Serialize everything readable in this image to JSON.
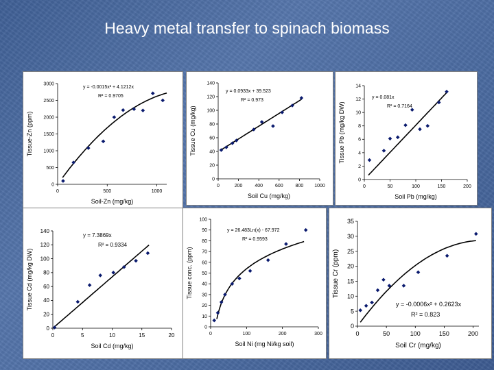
{
  "slide": {
    "title": "Heavy metal transfer to spinach biomass"
  },
  "colors": {
    "marker": "#0a1a6e",
    "line": "#000000",
    "background": "#ffffff"
  },
  "chart_data": [
    {
      "id": "zn",
      "type": "scatter",
      "xlabel": "Soil-Zn (mg/kg)",
      "ylabel": "Tissue-Zn (ppm)",
      "xlim": [
        0,
        1100
      ],
      "ylim": [
        0,
        3000
      ],
      "xticks": [
        0,
        500,
        1000
      ],
      "yticks": [
        0,
        500,
        1000,
        1500,
        2000,
        2500,
        3000
      ],
      "points": [
        [
          55,
          100
        ],
        [
          160,
          650
        ],
        [
          310,
          1080
        ],
        [
          460,
          1280
        ],
        [
          570,
          2000
        ],
        [
          660,
          2210
        ],
        [
          770,
          2240
        ],
        [
          860,
          2200
        ],
        [
          960,
          2710
        ],
        [
          1060,
          2500
        ]
      ],
      "trend": {
        "kind": "poly2",
        "a": -0.0015,
        "b": 4.1212,
        "range": [
          50,
          1100
        ]
      },
      "equation": "y = -0.0015x² + 4.1212x",
      "r2": "R² = 0.9705"
    },
    {
      "id": "cu",
      "type": "scatter",
      "xlabel": "Soil Cu (mg/kg)",
      "ylabel": "Tissue Cu (mg/kg)",
      "xlim": [
        0,
        1000
      ],
      "ylim": [
        0,
        140
      ],
      "xticks": [
        0,
        200,
        400,
        600,
        800,
        1000
      ],
      "yticks": [
        0,
        20,
        40,
        60,
        80,
        100,
        120,
        140
      ],
      "points": [
        [
          30,
          42
        ],
        [
          80,
          46
        ],
        [
          140,
          52
        ],
        [
          180,
          56
        ],
        [
          350,
          72
        ],
        [
          430,
          83
        ],
        [
          540,
          77
        ],
        [
          630,
          97
        ],
        [
          730,
          107
        ],
        [
          820,
          118
        ]
      ],
      "trend": {
        "kind": "linear",
        "m": 0.0933,
        "c": 39.523,
        "range": [
          30,
          820
        ]
      },
      "equation": "y = 0.0933x + 39.523",
      "r2": "R² = 0.973"
    },
    {
      "id": "pb",
      "type": "scatter",
      "xlabel": "Soil Pb (mg/kg)",
      "ylabel": "Tissue Pb (mg/kg DW)",
      "xlim": [
        0,
        200
      ],
      "ylim": [
        0,
        14
      ],
      "xticks": [
        0,
        50,
        100,
        150,
        200
      ],
      "yticks": [
        0,
        2,
        4,
        6,
        8,
        10,
        12,
        14
      ],
      "points": [
        [
          10,
          2.9
        ],
        [
          38,
          4.3
        ],
        [
          50,
          6.1
        ],
        [
          65,
          6.3
        ],
        [
          80,
          8.1
        ],
        [
          93,
          10.4
        ],
        [
          108,
          7.5
        ],
        [
          123,
          8.0
        ],
        [
          145,
          11.5
        ],
        [
          160,
          13.1
        ]
      ],
      "trend": {
        "kind": "linear",
        "m": 0.081,
        "c": 0,
        "range": [
          8,
          162
        ]
      },
      "equation": "y = 0.081x",
      "r2": "R² = 0.7164"
    },
    {
      "id": "cd",
      "type": "scatter",
      "xlabel": "Soil Cd (mg/kg)",
      "ylabel": "Tissue Cd (mg/kg DW)",
      "xlim": [
        0,
        20
      ],
      "ylim": [
        0,
        140
      ],
      "xticks": [
        0,
        5,
        10,
        15,
        20
      ],
      "yticks": [
        0,
        20,
        40,
        60,
        80,
        100,
        120,
        140
      ],
      "points": [
        [
          0.3,
          1
        ],
        [
          4.2,
          38
        ],
        [
          6.2,
          62
        ],
        [
          8,
          76
        ],
        [
          10.2,
          80
        ],
        [
          12,
          88
        ],
        [
          14,
          97
        ],
        [
          16,
          108
        ]
      ],
      "trend": {
        "kind": "linear",
        "m": 7.3869,
        "c": 0,
        "range": [
          0,
          16.2
        ]
      },
      "equation": "y = 7.3869x",
      "r2": "R² = 0.9334"
    },
    {
      "id": "ni",
      "type": "scatter",
      "xlabel": "Soil Ni (mg Ni/kg soil)",
      "ylabel": "Tissue conc. (ppm)",
      "xlim": [
        0,
        300
      ],
      "ylim": [
        0,
        100
      ],
      "xticks": [
        0,
        100,
        200,
        300
      ],
      "yticks": [
        0,
        10,
        20,
        30,
        40,
        50,
        60,
        70,
        80,
        90,
        100
      ],
      "points": [
        [
          10,
          6
        ],
        [
          20,
          13
        ],
        [
          30,
          23
        ],
        [
          40,
          30
        ],
        [
          60,
          40
        ],
        [
          80,
          45
        ],
        [
          110,
          52
        ],
        [
          160,
          62
        ],
        [
          210,
          77
        ],
        [
          265,
          90
        ]
      ],
      "trend": {
        "kind": "log",
        "a": 26.483,
        "b": -67.972,
        "range": [
          13,
          260
        ]
      },
      "equation": "y = 26.483Ln(x) - 67.972",
      "r2": "R² = 0.9593"
    },
    {
      "id": "cr",
      "type": "scatter",
      "xlabel": "Soil Cr (mg/kg)",
      "ylabel": "Tissue Cr (ppm)",
      "xlim": [
        0,
        210
      ],
      "ylim": [
        0,
        35
      ],
      "xticks": [
        0,
        50,
        100,
        150,
        200
      ],
      "yticks": [
        0,
        5,
        10,
        15,
        20,
        25,
        30,
        35
      ],
      "points": [
        [
          5,
          5.3
        ],
        [
          15,
          6.8
        ],
        [
          25,
          7.9
        ],
        [
          35,
          12
        ],
        [
          45,
          15.5
        ],
        [
          55,
          13.5
        ],
        [
          80,
          13.5
        ],
        [
          105,
          18
        ],
        [
          155,
          23.5
        ],
        [
          205,
          30.8
        ]
      ],
      "trend": {
        "kind": "poly2",
        "a": -0.0006,
        "b": 0.2623,
        "range": [
          5,
          205
        ]
      },
      "equation": "y = -0.0006x² + 0.2623x",
      "r2": "R² = 0.823"
    }
  ]
}
